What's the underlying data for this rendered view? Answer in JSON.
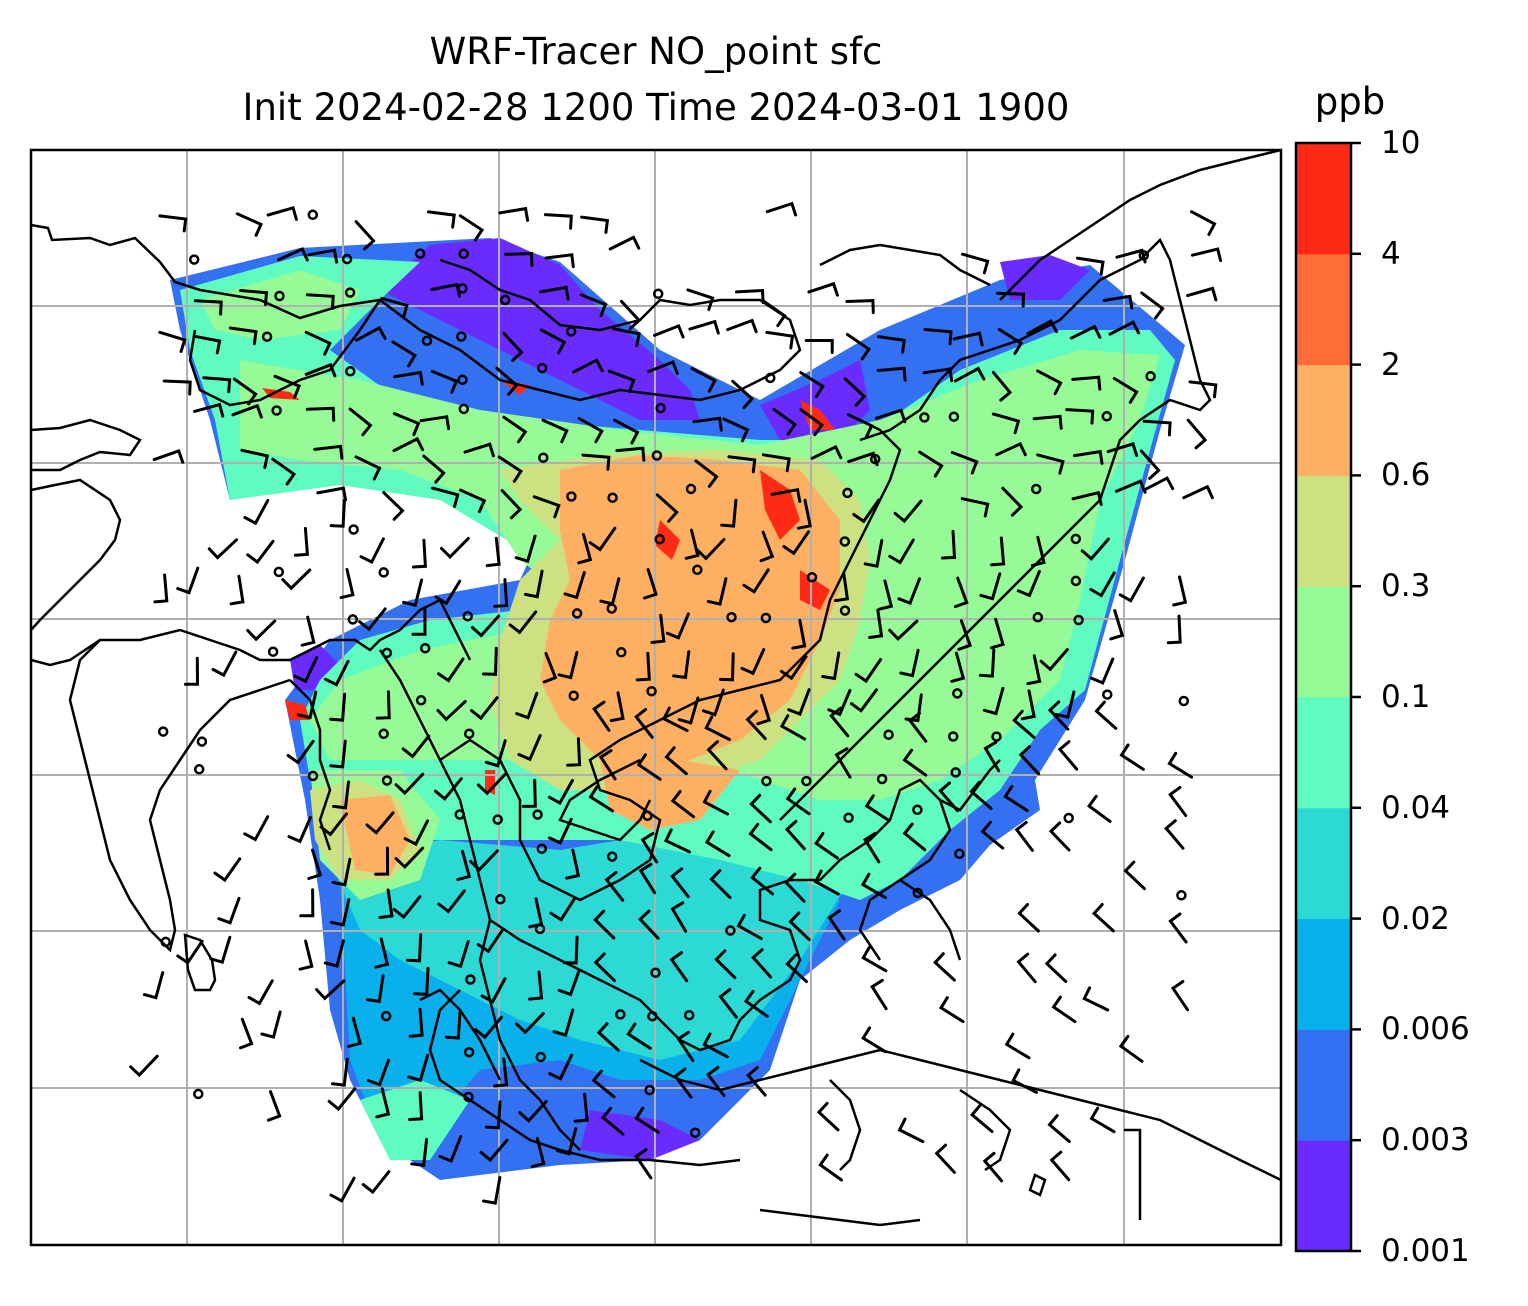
{
  "title": {
    "line1": "WRF-Tracer NO_point sfc",
    "line2": "Init 2024-02-28 1200 Time 2024-03-01 1900"
  },
  "colorbar": {
    "unit": "ppb",
    "levels": [
      "0.001",
      "0.003",
      "0.006",
      "0.02",
      "0.04",
      "0.1",
      "0.3",
      "0.6",
      "2",
      "4",
      "10"
    ],
    "colors": [
      "#6a2bff",
      "#3470f2",
      "#0ab0eb",
      "#2dd9d5",
      "#5ffbc1",
      "#96fa96",
      "#cde183",
      "#fdaf62",
      "#ff6d36",
      "#ff2a16"
    ]
  },
  "map": {
    "gridlines": true,
    "coastline_color": "#000000",
    "grid_color": "#b0b0b0",
    "barb_color": "#000000"
  }
}
